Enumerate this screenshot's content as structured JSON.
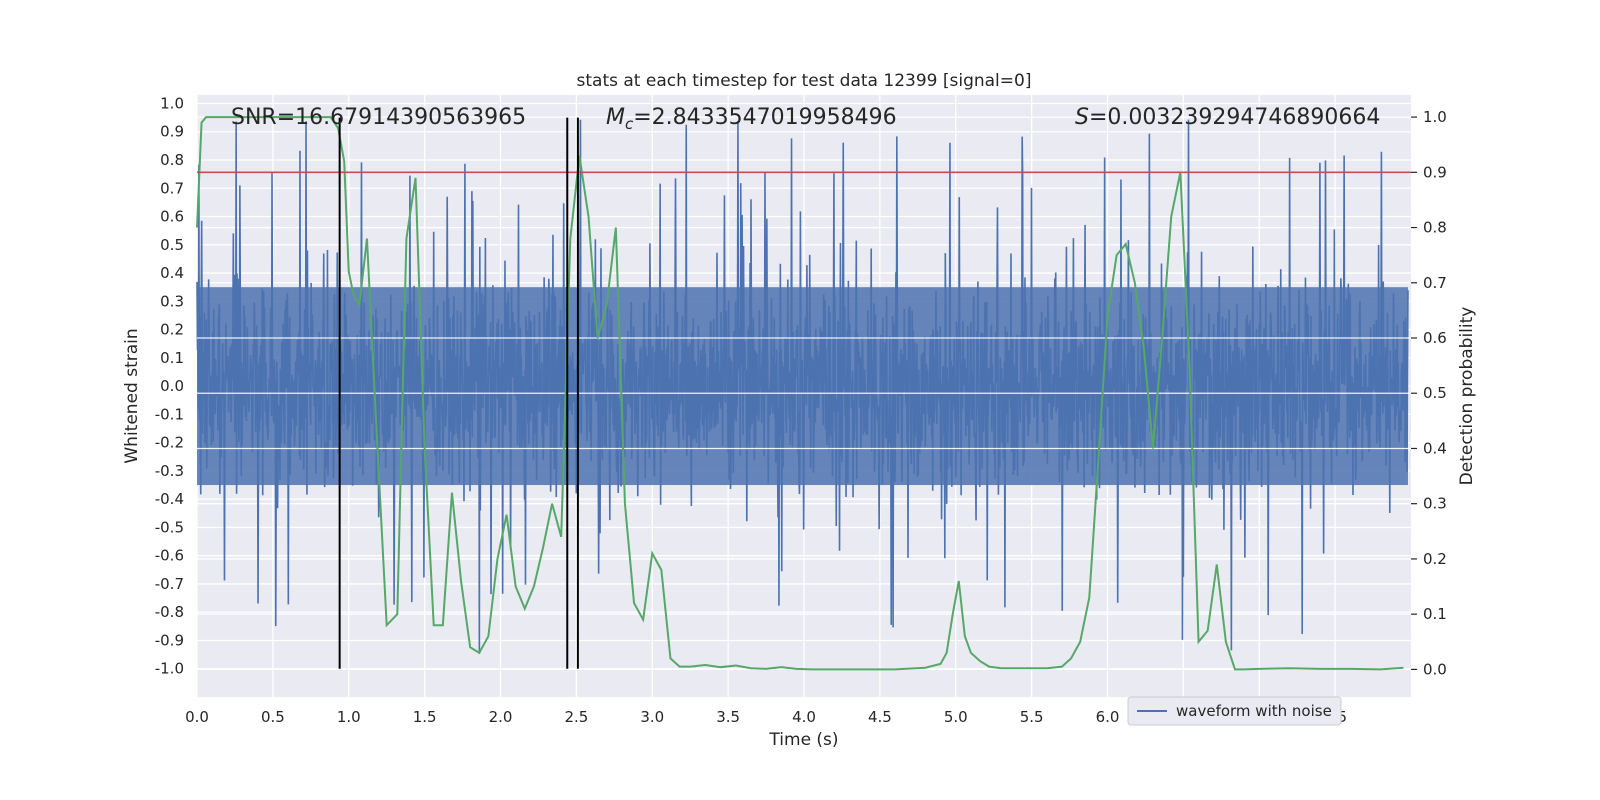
{
  "chart_data": {
    "type": "line",
    "title": "stats at each timestep for test data 12399 [signal=0]",
    "xlabel": "Time (s)",
    "ylabel": "Whitened strain",
    "y2label": "Detection probability",
    "xlim": [
      0.0,
      8.0
    ],
    "ylim": [
      -1.1,
      1.03
    ],
    "y2lim": [
      -0.05,
      1.04
    ],
    "xticks": [
      "0.0",
      "0.5",
      "1.0",
      "1.5",
      "2.0",
      "2.5",
      "3.0",
      "3.5",
      "4.0",
      "4.5",
      "5.0",
      "5.5",
      "6.0",
      "6.5",
      "7.0",
      "7.5"
    ],
    "yticks": [
      "1.0",
      "0.9",
      "0.8",
      "0.7",
      "0.6",
      "0.5",
      "0.4",
      "0.3",
      "0.2",
      "0.1",
      "0.0",
      "-0.1",
      "-0.2",
      "-0.3",
      "-0.4",
      "-0.5",
      "-0.6",
      "-0.7",
      "-0.8",
      "-0.9",
      "-1.0"
    ],
    "y2ticks": [
      "0.0",
      "0.1",
      "0.2",
      "0.3",
      "0.4",
      "0.5",
      "0.6",
      "0.7",
      "0.8",
      "0.9",
      "1.0"
    ],
    "annotations": {
      "snr": "SNR=16.67914390563965",
      "mc_symbol": "M",
      "mc_sub": "c",
      "mc_value": "=2.8433547019958496",
      "s_symbol": "S",
      "s_value": "=0.003239294746890664"
    },
    "threshold": {
      "y2": 0.9,
      "color": "#c44e52"
    },
    "vlines_x": [
      0.94,
      2.44,
      2.51
    ],
    "series": [
      {
        "name": "waveform with noise",
        "color": "#4c72b0",
        "axis": "left",
        "description": "whitened strain noise, dense, amplitude mostly within ±0.35 with spikes up to about ±0.95",
        "typical_amplitude": 0.35,
        "peak_amplitude": 0.95
      },
      {
        "color": "#55a868",
        "axis": "right",
        "x": [
          0.0,
          0.03,
          0.06,
          0.12,
          0.2,
          0.3,
          0.4,
          0.5,
          0.6,
          0.7,
          0.8,
          0.88,
          0.93,
          0.97,
          1.0,
          1.03,
          1.07,
          1.12,
          1.18,
          1.25,
          1.32,
          1.38,
          1.44,
          1.5,
          1.56,
          1.62,
          1.68,
          1.74,
          1.8,
          1.86,
          1.92,
          1.98,
          2.04,
          2.1,
          2.16,
          2.22,
          2.28,
          2.34,
          2.4,
          2.46,
          2.52,
          2.58,
          2.64,
          2.7,
          2.76,
          2.82,
          2.88,
          2.94,
          3.0,
          3.06,
          3.12,
          3.18,
          3.25,
          3.35,
          3.45,
          3.55,
          3.65,
          3.75,
          3.85,
          3.95,
          4.05,
          4.2,
          4.4,
          4.6,
          4.8,
          4.9,
          4.94,
          4.98,
          5.02,
          5.06,
          5.1,
          5.16,
          5.22,
          5.3,
          5.4,
          5.5,
          5.6,
          5.7,
          5.76,
          5.82,
          5.88,
          5.94,
          6.0,
          6.06,
          6.12,
          6.18,
          6.24,
          6.3,
          6.36,
          6.42,
          6.48,
          6.54,
          6.6,
          6.66,
          6.72,
          6.78,
          6.84,
          6.9,
          7.0,
          7.2,
          7.4,
          7.6,
          7.8,
          7.95
        ],
        "values": [
          0.8,
          0.99,
          1.0,
          1.0,
          1.0,
          1.0,
          1.0,
          1.0,
          1.0,
          1.0,
          1.0,
          1.0,
          0.98,
          0.92,
          0.72,
          0.68,
          0.66,
          0.78,
          0.45,
          0.08,
          0.1,
          0.78,
          0.89,
          0.4,
          0.08,
          0.08,
          0.32,
          0.16,
          0.04,
          0.03,
          0.06,
          0.2,
          0.28,
          0.15,
          0.11,
          0.15,
          0.22,
          0.3,
          0.24,
          0.78,
          0.93,
          0.82,
          0.6,
          0.66,
          0.8,
          0.3,
          0.12,
          0.09,
          0.21,
          0.18,
          0.02,
          0.005,
          0.005,
          0.008,
          0.004,
          0.007,
          0.002,
          0.001,
          0.004,
          0.001,
          0.0,
          0.0,
          0.0,
          0.0,
          0.003,
          0.01,
          0.03,
          0.1,
          0.16,
          0.06,
          0.03,
          0.015,
          0.005,
          0.002,
          0.002,
          0.002,
          0.002,
          0.005,
          0.02,
          0.05,
          0.13,
          0.38,
          0.64,
          0.75,
          0.77,
          0.7,
          0.58,
          0.4,
          0.6,
          0.82,
          0.9,
          0.55,
          0.05,
          0.07,
          0.19,
          0.05,
          0.0,
          0.0,
          0.001,
          0.002,
          0.001,
          0.001,
          0.0,
          0.003
        ]
      }
    ],
    "legend": {
      "position": "bottom-right-center",
      "entries": [
        "waveform with noise"
      ]
    },
    "grid": true,
    "background_color": "#eaeaf2"
  }
}
